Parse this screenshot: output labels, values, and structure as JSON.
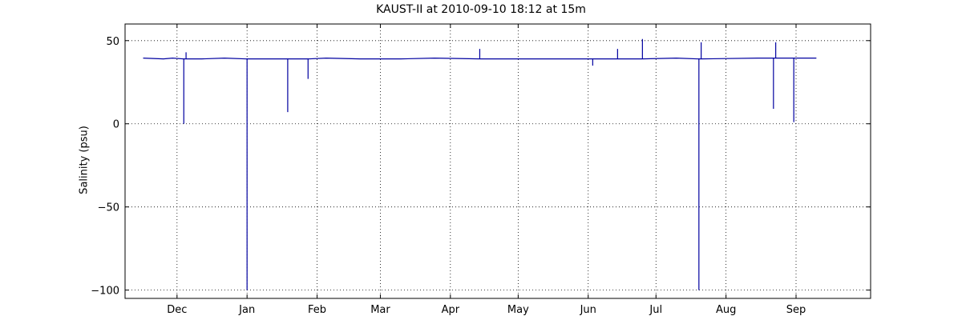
{
  "chart_data": {
    "type": "line",
    "title": "KAUST-II at 2010-09-10 18:12 at 15m",
    "ylabel": "Salinity (psu)",
    "xlabel": "",
    "ylim": [
      -105,
      60
    ],
    "yticks": [
      50,
      0,
      -50,
      -100
    ],
    "ytick_labels": [
      "50",
      "0",
      "−50",
      "−100"
    ],
    "xlim": [
      "2009-11-08",
      "2010-10-04"
    ],
    "xticks": [
      "2009-12-01",
      "2010-01-01",
      "2010-02-01",
      "2010-03-01",
      "2010-04-01",
      "2010-05-01",
      "2010-06-01",
      "2010-07-01",
      "2010-08-01",
      "2010-09-01"
    ],
    "xtick_labels": [
      "Dec",
      "Jan",
      "Feb",
      "Mar",
      "Apr",
      "May",
      "Jun",
      "Jul",
      "Aug",
      "Sep"
    ],
    "grid": true,
    "color": "#0000a0",
    "series": [
      {
        "x": [
          "2009-11-16",
          "2009-11-25",
          "2009-11-29",
          "2009-12-04",
          "2009-12-04",
          "2009-12-04",
          "2009-12-05",
          "2009-12-05",
          "2009-12-05",
          "2009-12-12",
          "2009-12-22",
          "2010-01-01",
          "2010-01-01",
          "2010-01-01",
          "2010-01-15",
          "2010-01-19",
          "2010-01-19",
          "2010-01-19",
          "2010-01-28",
          "2010-01-28",
          "2010-01-28",
          "2010-02-05",
          "2010-02-20",
          "2010-03-10",
          "2010-03-25",
          "2010-04-14",
          "2010-04-14",
          "2010-04-14",
          "2010-04-30",
          "2010-05-15",
          "2010-05-31",
          "2010-06-03",
          "2010-06-03",
          "2010-06-03",
          "2010-06-14",
          "2010-06-14",
          "2010-06-14",
          "2010-06-25",
          "2010-06-25",
          "2010-06-25",
          "2010-07-10",
          "2010-07-20",
          "2010-07-20",
          "2010-07-20",
          "2010-07-21",
          "2010-07-21",
          "2010-07-21",
          "2010-08-15",
          "2010-08-22",
          "2010-08-22",
          "2010-08-22",
          "2010-08-23",
          "2010-08-23",
          "2010-08-23",
          "2010-08-31",
          "2010-08-31",
          "2010-08-31",
          "2010-09-10"
        ],
        "y": [
          39.5,
          39,
          39.5,
          39,
          0,
          39,
          39,
          43,
          39,
          39,
          39.5,
          39,
          -100,
          39,
          39,
          39,
          7,
          39,
          39,
          27,
          39,
          39.5,
          39,
          39,
          39.5,
          39,
          45,
          39,
          39,
          39,
          39,
          39,
          35,
          39,
          39,
          45,
          39,
          39,
          51,
          39,
          39.5,
          39,
          -100,
          39,
          39,
          49,
          39,
          39.5,
          39.5,
          9,
          39.5,
          39.5,
          49,
          39.5,
          39.5,
          1,
          39.5,
          39.5
        ]
      }
    ]
  }
}
